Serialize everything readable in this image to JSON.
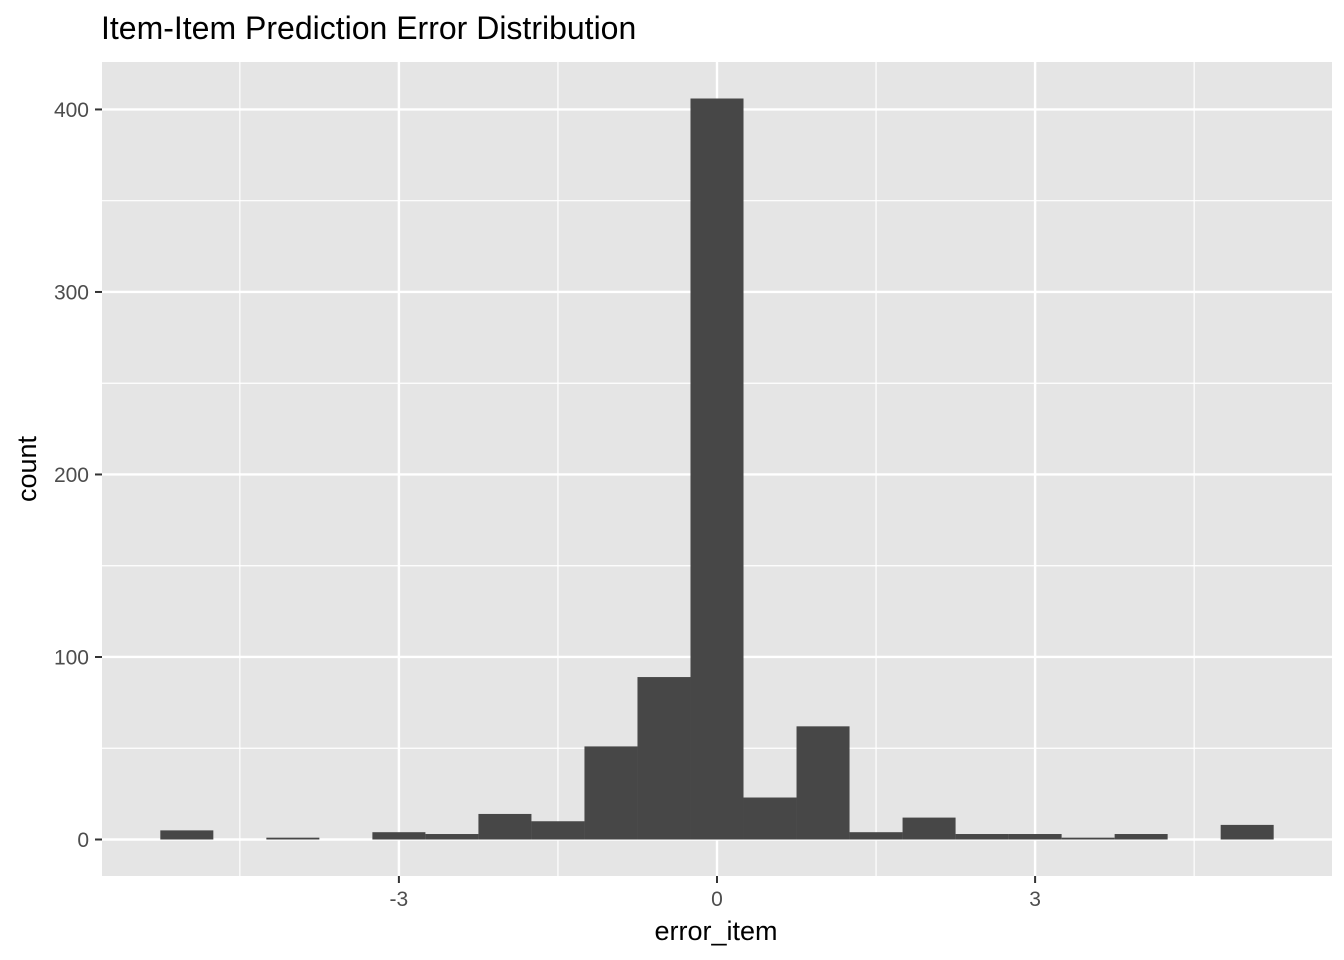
{
  "chart_data": {
    "type": "bar",
    "title": "Item-Item Prediction Error Distribution",
    "xlabel": "error_item",
    "ylabel": "count",
    "bin_width": 0.5,
    "bins": [
      {
        "x": -5.0,
        "count": 5
      },
      {
        "x": -4.5,
        "count": 0
      },
      {
        "x": -4.0,
        "count": 1
      },
      {
        "x": -3.5,
        "count": 0
      },
      {
        "x": -3.0,
        "count": 4
      },
      {
        "x": -2.5,
        "count": 3
      },
      {
        "x": -2.0,
        "count": 14
      },
      {
        "x": -1.5,
        "count": 10
      },
      {
        "x": -1.0,
        "count": 51
      },
      {
        "x": -0.5,
        "count": 89
      },
      {
        "x": 0.0,
        "count": 406
      },
      {
        "x": 0.5,
        "count": 23
      },
      {
        "x": 1.0,
        "count": 62
      },
      {
        "x": 1.5,
        "count": 4
      },
      {
        "x": 2.0,
        "count": 12
      },
      {
        "x": 2.5,
        "count": 3
      },
      {
        "x": 3.0,
        "count": 3
      },
      {
        "x": 3.5,
        "count": 1
      },
      {
        "x": 4.0,
        "count": 3
      },
      {
        "x": 4.5,
        "count": 0
      },
      {
        "x": 5.0,
        "count": 8
      }
    ],
    "xlim": [
      -5.8,
      5.8
    ],
    "ylim": [
      -20,
      426
    ],
    "x_ticks": [
      -3,
      0,
      3
    ],
    "x_tick_labels": [
      "-3",
      "0",
      "3"
    ],
    "x_minor_breaks": [
      -4.5,
      -1.5,
      1.5,
      4.5
    ],
    "y_ticks": [
      0,
      100,
      200,
      300,
      400
    ],
    "y_tick_labels": [
      "0",
      "100",
      "200",
      "300",
      "400"
    ],
    "y_minor_breaks": [
      50,
      150,
      250,
      350
    ],
    "grid": true,
    "legend": "none",
    "colors": {
      "panel_background": "#e5e5e5",
      "grid_line": "#ffffff",
      "bar_fill": "#474747",
      "tick_mark": "#333333"
    }
  }
}
